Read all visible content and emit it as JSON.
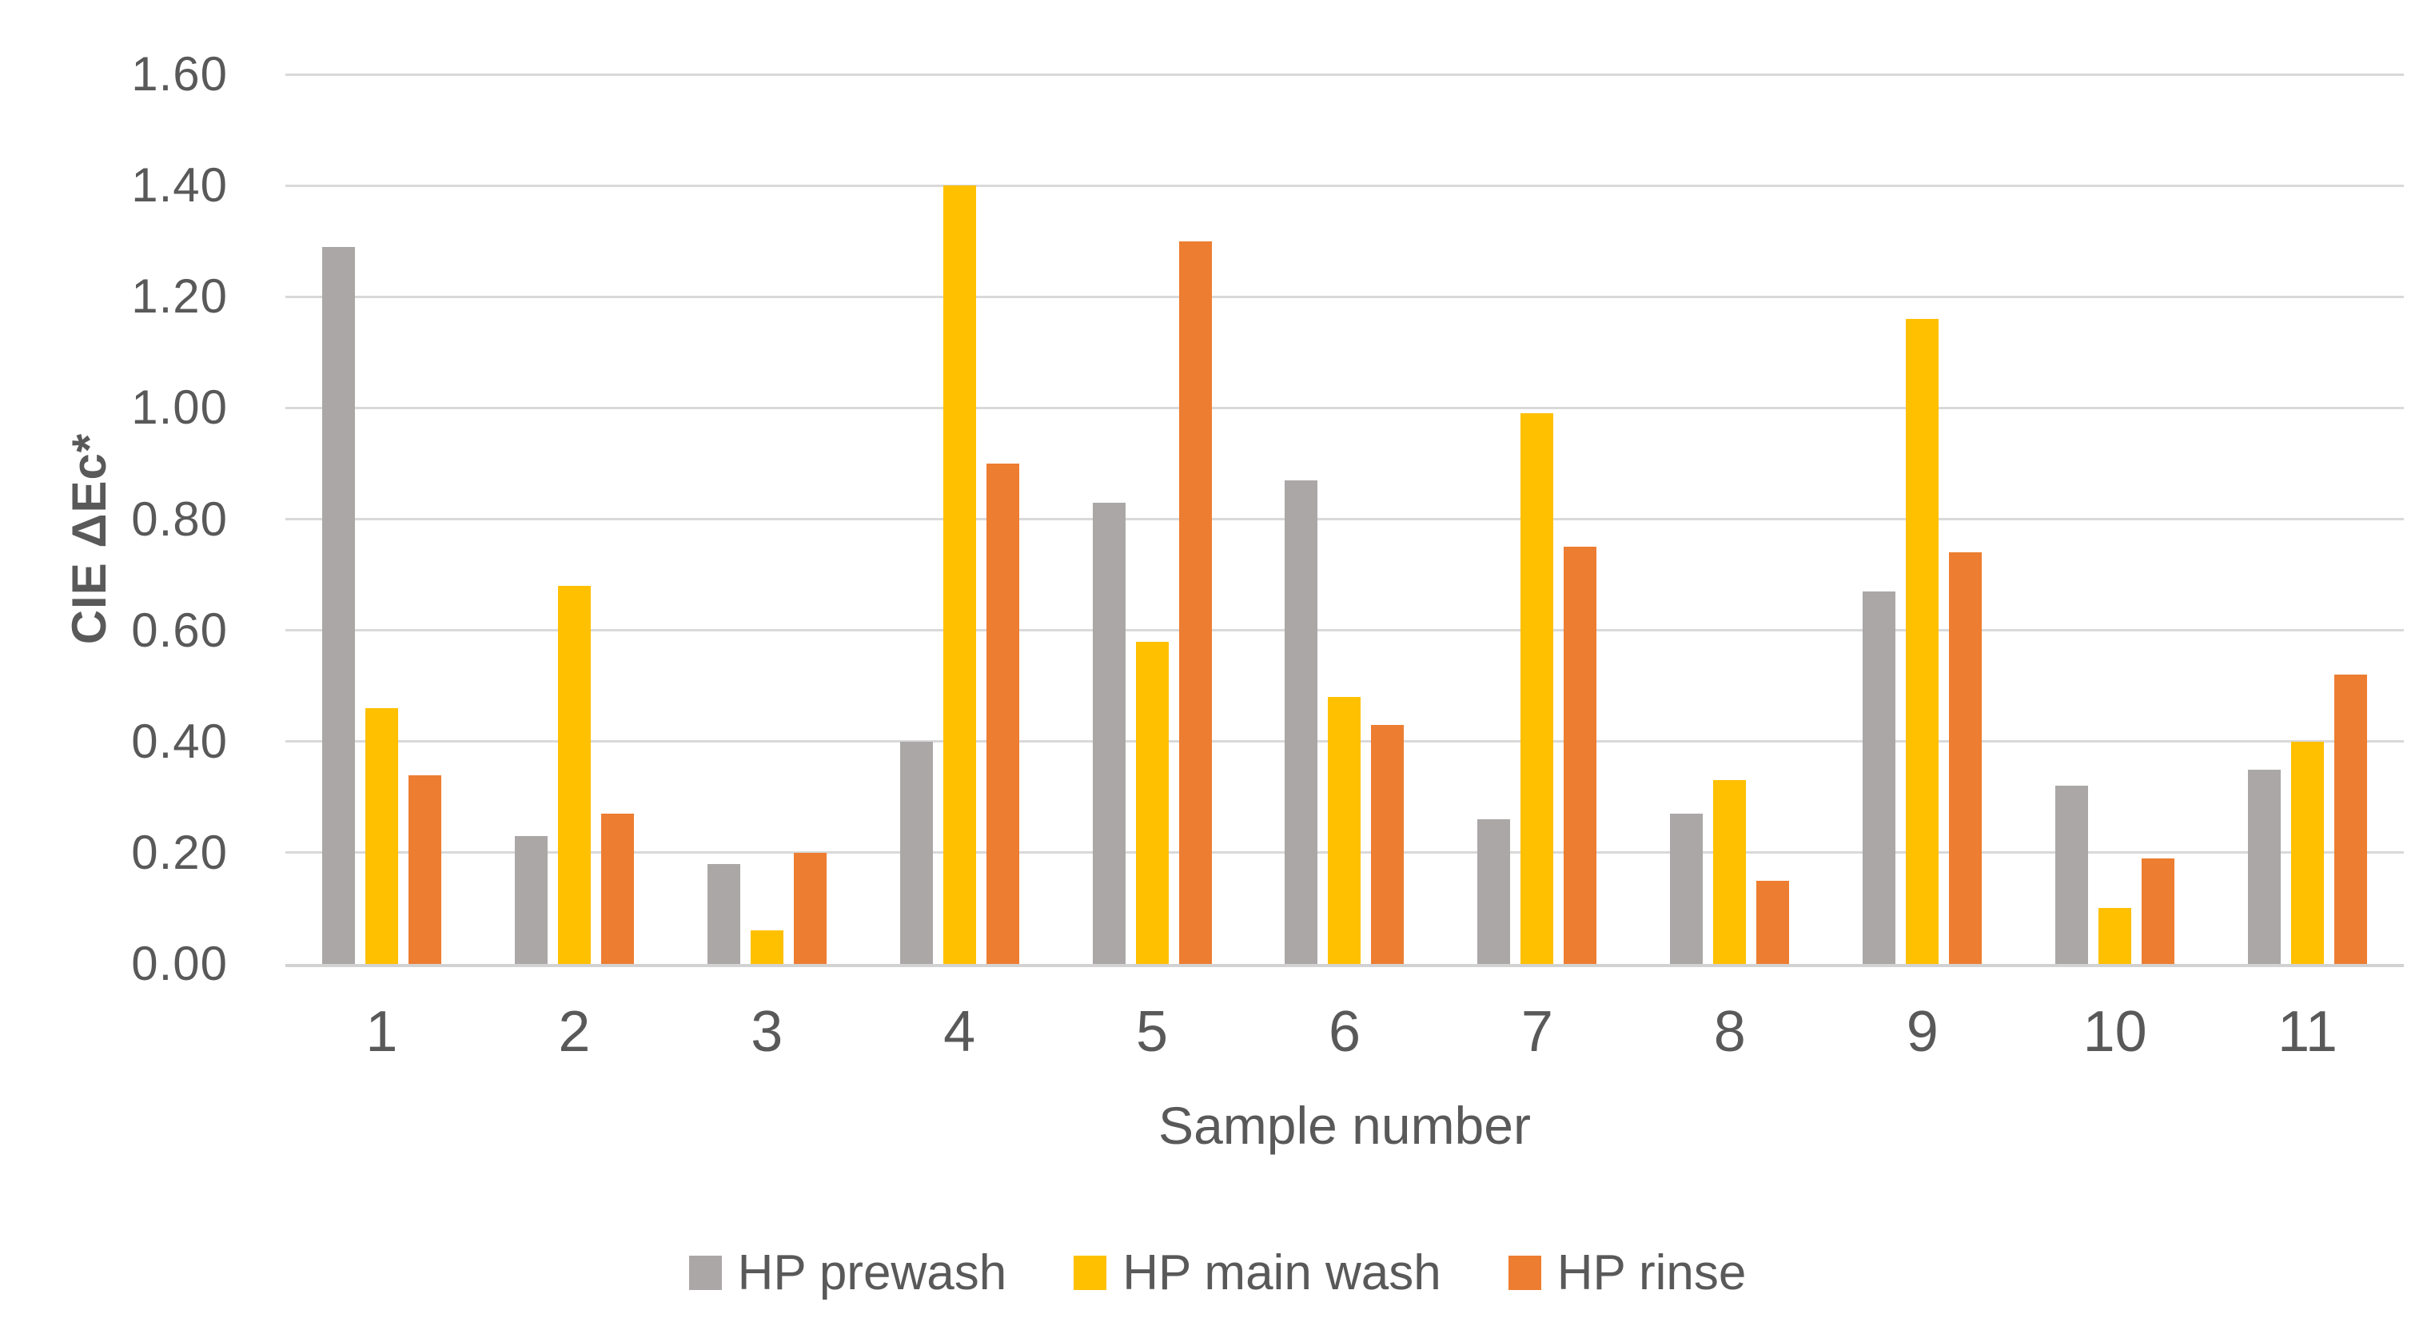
{
  "chart_data": {
    "type": "bar",
    "title": "",
    "xlabel": "Sample number",
    "ylabel": "CIE ΔEc*",
    "categories": [
      "1",
      "2",
      "3",
      "4",
      "5",
      "6",
      "7",
      "8",
      "9",
      "10",
      "11"
    ],
    "series": [
      {
        "name": "HP prewash",
        "color": "#aba7a7",
        "values": [
          1.29,
          0.23,
          0.18,
          0.4,
          0.83,
          0.87,
          0.26,
          0.27,
          0.67,
          0.32,
          0.35
        ]
      },
      {
        "name": "HP main wash",
        "color": "#ffc000",
        "values": [
          0.46,
          0.68,
          0.06,
          1.4,
          0.58,
          0.48,
          0.99,
          0.33,
          1.16,
          0.1,
          0.4
        ]
      },
      {
        "name": "HP rinse",
        "color": "#ed7d31",
        "values": [
          0.34,
          0.27,
          0.2,
          0.9,
          1.3,
          0.43,
          0.75,
          0.15,
          0.74,
          0.19,
          0.52
        ]
      }
    ],
    "ylim": [
      0,
      1.6
    ],
    "y_ticks": [
      "0.00",
      "0.20",
      "0.40",
      "0.60",
      "0.80",
      "1.00",
      "1.20",
      "1.40",
      "1.60"
    ],
    "grid": true,
    "legend_position": "bottom"
  },
  "colors": {
    "gridline": "#d9d9d9",
    "axis_line": "#d2d2d2",
    "text": "#595959",
    "background": "#ffffff"
  }
}
